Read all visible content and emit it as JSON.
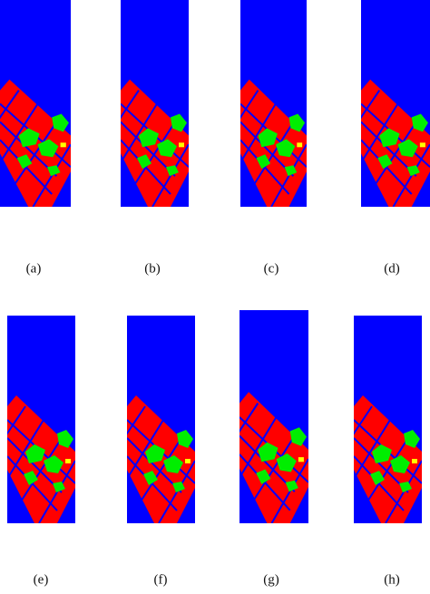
{
  "figure": {
    "labels": [
      "(a)",
      "(b)",
      "(c)",
      "(d)",
      "(e)",
      "(f)",
      "(g)",
      "(h)"
    ]
  }
}
